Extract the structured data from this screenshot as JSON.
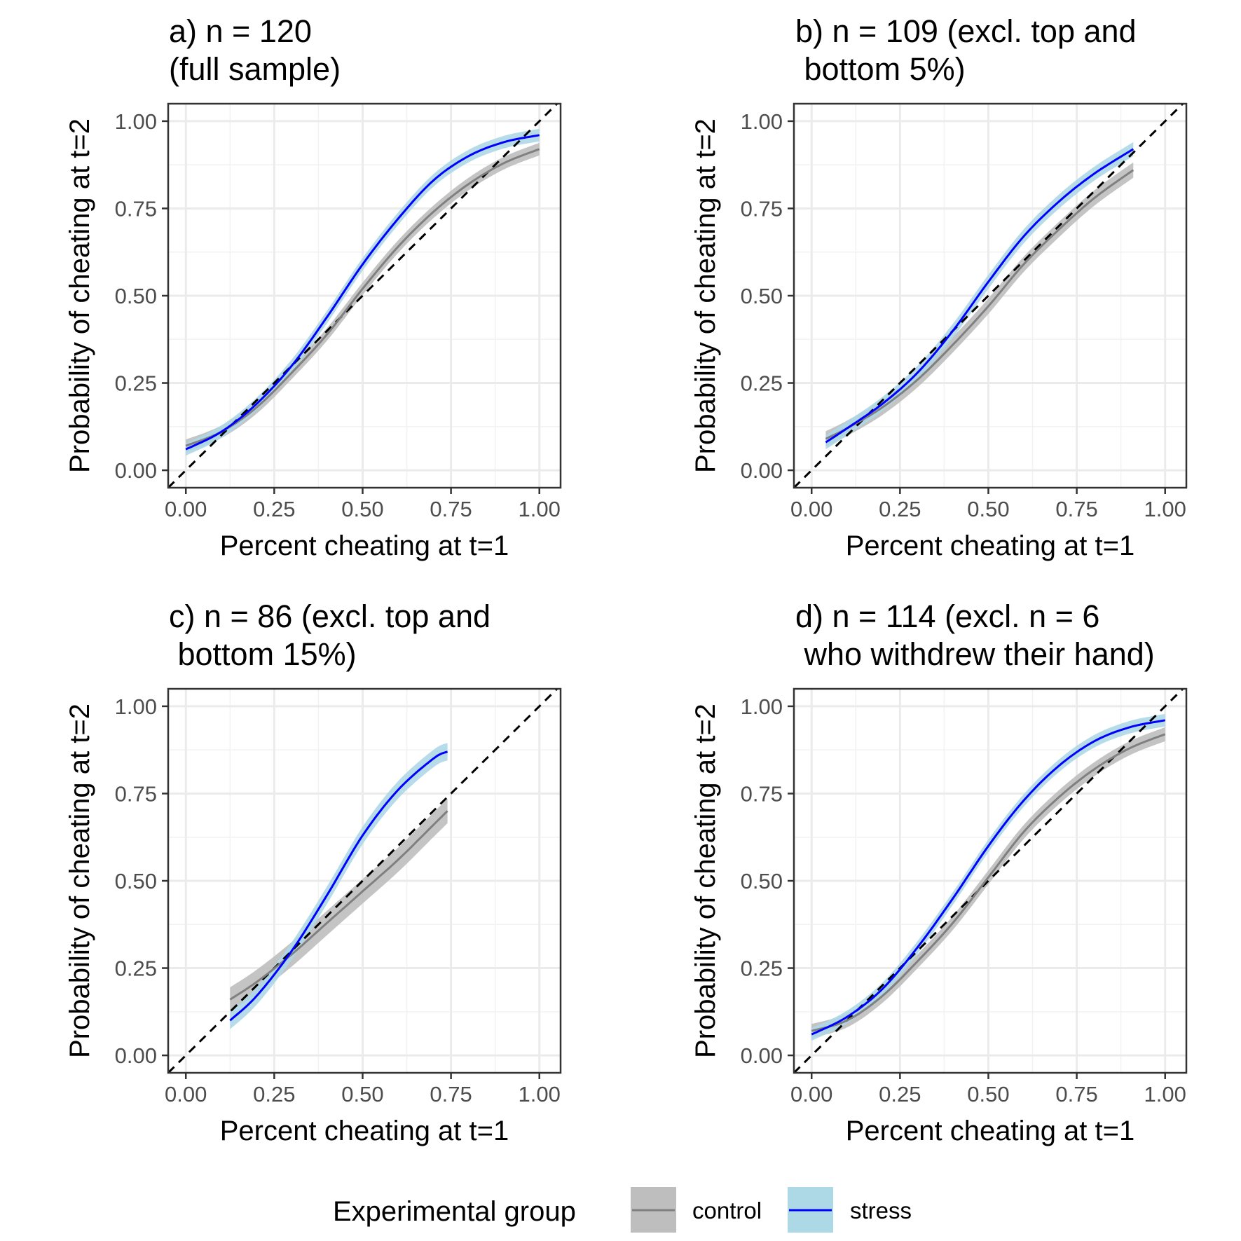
{
  "chart_data": [
    {
      "type": "line",
      "title": [
        "a) n = 120",
        "(full sample)"
      ],
      "xlabel": "Percent cheating at t=1",
      "ylabel": "Probability of cheating at t=2",
      "xlim": [
        -0.05,
        1.06
      ],
      "ylim": [
        -0.05,
        1.05
      ],
      "xticks": [
        "0.00",
        "0.25",
        "0.50",
        "0.75",
        "1.00"
      ],
      "yticks": [
        "0.00",
        "0.25",
        "0.50",
        "0.75",
        "1.00"
      ],
      "grid": true,
      "reference_line": {
        "style": "dashed",
        "x": [
          -0.05,
          1.05
        ],
        "y": [
          -0.05,
          1.05
        ]
      },
      "series": [
        {
          "name": "control",
          "color": "#808080",
          "band_color": "#bebebe",
          "x": [
            0.0,
            0.1,
            0.2,
            0.3,
            0.4,
            0.5,
            0.6,
            0.7,
            0.8,
            0.9,
            1.0
          ],
          "y": [
            0.07,
            0.11,
            0.18,
            0.28,
            0.39,
            0.52,
            0.64,
            0.74,
            0.82,
            0.88,
            0.92
          ],
          "band": 0.018
        },
        {
          "name": "stress",
          "color": "#0000ff",
          "band_color": "#add8e6",
          "x": [
            0.0,
            0.1,
            0.2,
            0.3,
            0.4,
            0.5,
            0.6,
            0.7,
            0.8,
            0.9,
            1.0
          ],
          "y": [
            0.06,
            0.11,
            0.19,
            0.3,
            0.44,
            0.59,
            0.72,
            0.83,
            0.9,
            0.94,
            0.96
          ],
          "band": 0.018
        }
      ]
    },
    {
      "type": "line",
      "title": [
        "b) n = 109 (excl. top and",
        " bottom 5%)"
      ],
      "xlabel": "Percent cheating at t=1",
      "ylabel": "Probability of cheating at t=2",
      "xlim": [
        -0.05,
        1.06
      ],
      "ylim": [
        -0.05,
        1.05
      ],
      "xticks": [
        "0.00",
        "0.25",
        "0.50",
        "0.75",
        "1.00"
      ],
      "yticks": [
        "0.00",
        "0.25",
        "0.50",
        "0.75",
        "1.00"
      ],
      "grid": true,
      "reference_line": {
        "style": "dashed",
        "x": [
          -0.05,
          1.05
        ],
        "y": [
          -0.05,
          1.05
        ]
      },
      "series": [
        {
          "name": "control",
          "color": "#808080",
          "band_color": "#bebebe",
          "x": [
            0.04,
            0.1,
            0.2,
            0.3,
            0.4,
            0.5,
            0.6,
            0.7,
            0.8,
            0.91
          ],
          "y": [
            0.09,
            0.12,
            0.18,
            0.26,
            0.36,
            0.47,
            0.59,
            0.69,
            0.78,
            0.86
          ],
          "band": 0.022
        },
        {
          "name": "stress",
          "color": "#0000ff",
          "band_color": "#add8e6",
          "x": [
            0.04,
            0.1,
            0.2,
            0.3,
            0.4,
            0.5,
            0.6,
            0.7,
            0.8,
            0.91
          ],
          "y": [
            0.08,
            0.12,
            0.19,
            0.28,
            0.4,
            0.54,
            0.67,
            0.77,
            0.85,
            0.92
          ],
          "band": 0.02
        }
      ]
    },
    {
      "type": "line",
      "title": [
        "c) n = 86 (excl. top and",
        " bottom 15%)"
      ],
      "xlabel": "Percent cheating at t=1",
      "ylabel": "Probability of cheating at t=2",
      "xlim": [
        -0.05,
        1.06
      ],
      "ylim": [
        -0.05,
        1.05
      ],
      "xticks": [
        "0.00",
        "0.25",
        "0.50",
        "0.75",
        "1.00"
      ],
      "yticks": [
        "0.00",
        "0.25",
        "0.50",
        "0.75",
        "1.00"
      ],
      "grid": true,
      "reference_line": {
        "style": "dashed",
        "x": [
          -0.05,
          1.05
        ],
        "y": [
          -0.05,
          1.05
        ]
      },
      "series": [
        {
          "name": "control",
          "color": "#808080",
          "band_color": "#bebebe",
          "x": [
            0.125,
            0.2,
            0.3,
            0.4,
            0.5,
            0.6,
            0.7,
            0.74
          ],
          "y": [
            0.16,
            0.21,
            0.29,
            0.38,
            0.47,
            0.56,
            0.66,
            0.7
          ],
          "band": 0.035
        },
        {
          "name": "stress",
          "color": "#0000ff",
          "band_color": "#add8e6",
          "x": [
            0.125,
            0.2,
            0.3,
            0.4,
            0.5,
            0.6,
            0.7,
            0.74
          ],
          "y": [
            0.1,
            0.17,
            0.3,
            0.46,
            0.63,
            0.76,
            0.85,
            0.87
          ],
          "band": 0.025
        }
      ]
    },
    {
      "type": "line",
      "title": [
        "d) n = 114 (excl. n = 6",
        " who withdrew their hand)"
      ],
      "xlabel": "Percent cheating at t=1",
      "ylabel": "Probability of cheating at t=2",
      "xlim": [
        -0.05,
        1.06
      ],
      "ylim": [
        -0.05,
        1.05
      ],
      "xticks": [
        "0.00",
        "0.25",
        "0.50",
        "0.75",
        "1.00"
      ],
      "yticks": [
        "0.00",
        "0.25",
        "0.50",
        "0.75",
        "1.00"
      ],
      "grid": true,
      "reference_line": {
        "style": "dashed",
        "x": [
          -0.05,
          1.05
        ],
        "y": [
          -0.05,
          1.05
        ]
      },
      "series": [
        {
          "name": "control",
          "color": "#808080",
          "band_color": "#bebebe",
          "x": [
            0.0,
            0.1,
            0.2,
            0.3,
            0.4,
            0.5,
            0.6,
            0.7,
            0.8,
            0.9,
            1.0
          ],
          "y": [
            0.07,
            0.1,
            0.17,
            0.27,
            0.38,
            0.51,
            0.64,
            0.74,
            0.82,
            0.88,
            0.92
          ],
          "band": 0.02
        },
        {
          "name": "stress",
          "color": "#0000ff",
          "band_color": "#add8e6",
          "x": [
            0.0,
            0.1,
            0.2,
            0.3,
            0.4,
            0.5,
            0.6,
            0.7,
            0.8,
            0.9,
            1.0
          ],
          "y": [
            0.06,
            0.11,
            0.19,
            0.31,
            0.45,
            0.6,
            0.73,
            0.83,
            0.9,
            0.94,
            0.96
          ],
          "band": 0.018
        }
      ]
    }
  ],
  "legend": {
    "title": "Experimental group",
    "placement": "bottom",
    "entries": [
      {
        "label": "control",
        "line_color": "#808080",
        "fill_color": "#bebebe"
      },
      {
        "label": "stress",
        "line_color": "#0000ff",
        "fill_color": "#add8e6"
      }
    ]
  }
}
